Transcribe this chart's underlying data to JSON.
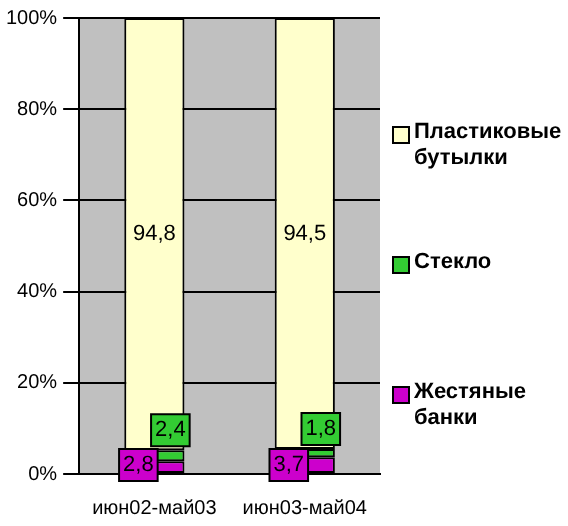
{
  "chart_data": {
    "type": "bar",
    "stacked": true,
    "categories": [
      "июн02-май03",
      "июн03-май04"
    ],
    "series": [
      {
        "name": "Жестяные банки",
        "color": "#cc00cc",
        "values": [
          2.8,
          3.7
        ],
        "value_labels": [
          "2,8",
          "3,7"
        ]
      },
      {
        "name": "Стекло",
        "color": "#33cc33",
        "values": [
          2.4,
          1.8
        ],
        "value_labels": [
          "2,4",
          "1,8"
        ]
      },
      {
        "name": "Пластиковые бутылки",
        "color": "#ffffcc",
        "values": [
          94.8,
          94.5
        ],
        "value_labels": [
          "94,8",
          "94,5"
        ]
      }
    ],
    "ylim": [
      0,
      100
    ],
    "yticks": [
      {
        "value": 0,
        "label": "0%"
      },
      {
        "value": 20,
        "label": "20%"
      },
      {
        "value": 40,
        "label": "40%"
      },
      {
        "value": 60,
        "label": "60%"
      },
      {
        "value": 80,
        "label": "80%"
      },
      {
        "value": 100,
        "label": "100%"
      }
    ],
    "grid": "y",
    "legend": "right"
  }
}
